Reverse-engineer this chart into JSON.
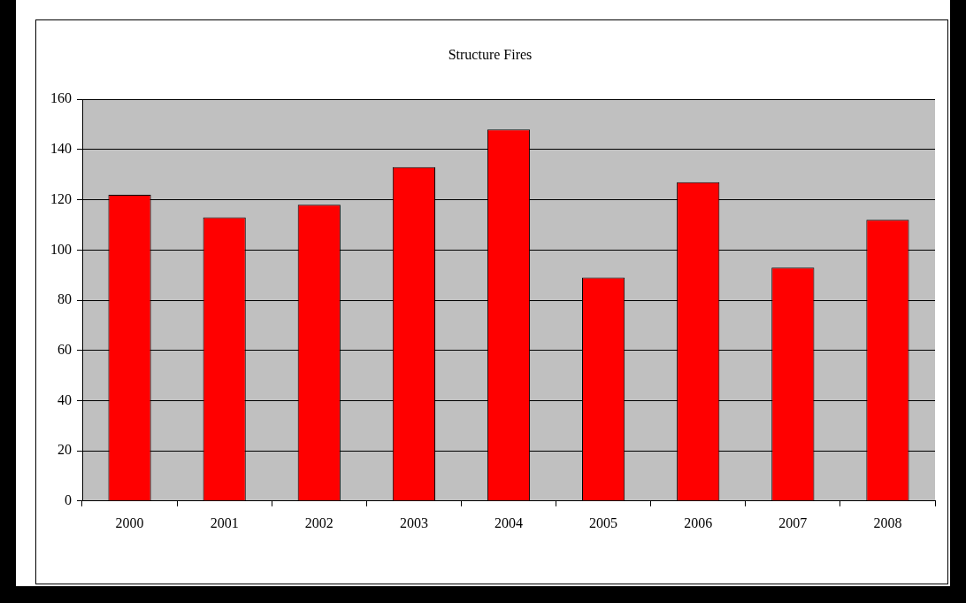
{
  "chart_data": {
    "type": "bar",
    "title": "Structure Fires",
    "categories": [
      "2000",
      "2001",
      "2002",
      "2003",
      "2004",
      "2005",
      "2006",
      "2007",
      "2008"
    ],
    "values": [
      122,
      113,
      118,
      133,
      148,
      89,
      127,
      93,
      112
    ],
    "color": "#ff0000",
    "ylim": [
      0,
      160
    ],
    "yticks": [
      0,
      20,
      40,
      60,
      80,
      100,
      120,
      140,
      160
    ],
    "grid": "y",
    "legend": false
  }
}
